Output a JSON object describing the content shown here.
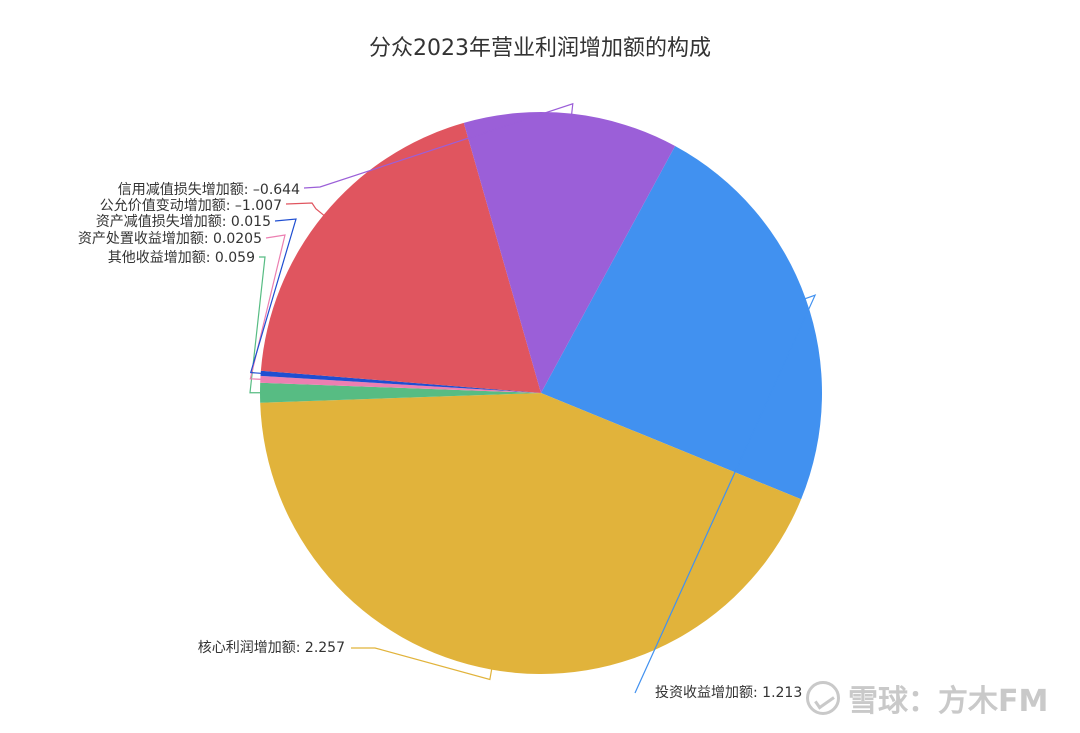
{
  "page": {
    "title": "分众2023年营业利润增加额的构成"
  },
  "chart_data": {
    "type": "pie",
    "title": "分众2023年营业利润增加额的构成",
    "slices": [
      {
        "name": "投资收益增加额",
        "value": 1.213,
        "label": "投资收益增加额: 1.213",
        "color": "#4191f0"
      },
      {
        "name": "核心利润增加额",
        "value": 2.257,
        "label": "核心利润增加额: 2.257",
        "color": "#e1b33b"
      },
      {
        "name": "其他收益增加额",
        "value": 0.059,
        "label": "其他收益增加额: 0.059",
        "color": "#57bc83"
      },
      {
        "name": "资产处置收益增加额",
        "value": 0.0205,
        "label": "资产处置收益增加额: 0.0205",
        "color": "#ec7fb1"
      },
      {
        "name": "资产减值损失增加额",
        "value": 0.015,
        "label": "资产减值损失增加额: 0.015",
        "color": "#1f4ed1"
      },
      {
        "name": "公允价值变动增加额",
        "value": -1.007,
        "label": "公允价值变动增加额: –1.007",
        "color": "#e0555f"
      },
      {
        "name": "信用减值损失增加额",
        "value": -0.644,
        "label": "信用减值损失增加额: –0.644",
        "color": "#9b5fd8"
      }
    ]
  },
  "watermark": {
    "text": "雪球：方木FM"
  }
}
